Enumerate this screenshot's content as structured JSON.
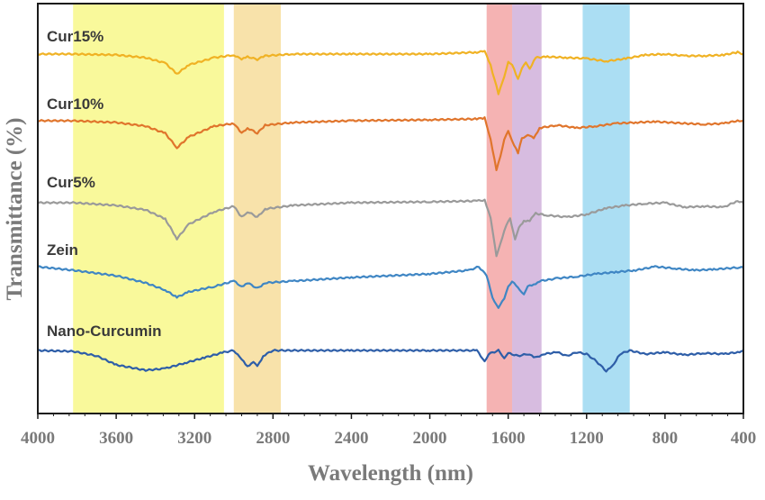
{
  "chart_data": {
    "type": "line",
    "xlabel": "Wavelength (nm)",
    "ylabel": "Transmittance (%)",
    "xlim": [
      4000,
      400
    ],
    "x_reversed": true,
    "xticks": [
      "4000",
      "3600",
      "3200",
      "2800",
      "2400",
      "2000",
      "1600",
      "1200",
      "800",
      "400"
    ],
    "grid": false,
    "legend": "inline labels above each curve",
    "bands": [
      {
        "from": 3820,
        "to": 3050,
        "color": "#f7f77a"
      },
      {
        "from": 3000,
        "to": 2760,
        "color": "#f6d88e"
      },
      {
        "from": 1710,
        "to": 1580,
        "color": "#f19a9a"
      },
      {
        "from": 1580,
        "to": 1430,
        "color": "#c9a6d6"
      },
      {
        "from": 1220,
        "to": 980,
        "color": "#8fd3ef"
      }
    ],
    "series": [
      {
        "name": "Cur15%",
        "color": "#f0b224",
        "points": [
          [
            4000,
            0.0
          ],
          [
            3820,
            0.0
          ],
          [
            3600,
            -1
          ],
          [
            3450,
            -4
          ],
          [
            3350,
            -10
          ],
          [
            3290,
            -22
          ],
          [
            3230,
            -12
          ],
          [
            3100,
            -4
          ],
          [
            3000,
            -1
          ],
          [
            2960,
            -6
          ],
          [
            2930,
            -3
          ],
          [
            2880,
            -6
          ],
          [
            2840,
            -2
          ],
          [
            2700,
            0
          ],
          [
            2400,
            0
          ],
          [
            2000,
            0
          ],
          [
            1760,
            2
          ],
          [
            1720,
            3
          ],
          [
            1690,
            -12
          ],
          [
            1650,
            -44
          ],
          [
            1620,
            -26
          ],
          [
            1600,
            -8
          ],
          [
            1580,
            -12
          ],
          [
            1550,
            -28
          ],
          [
            1530,
            -15
          ],
          [
            1510,
            -10
          ],
          [
            1490,
            -16
          ],
          [
            1460,
            -4
          ],
          [
            1400,
            -3
          ],
          [
            1300,
            -4
          ],
          [
            1200,
            -5
          ],
          [
            1100,
            -8
          ],
          [
            1000,
            -5
          ],
          [
            900,
            -1
          ],
          [
            800,
            0
          ],
          [
            700,
            -2
          ],
          [
            600,
            -2
          ],
          [
            500,
            -1
          ],
          [
            430,
            2
          ],
          [
            400,
            0
          ]
        ]
      },
      {
        "name": "Cur10%",
        "color": "#e0752c",
        "points": [
          [
            4000,
            0.0
          ],
          [
            3820,
            0.0
          ],
          [
            3600,
            -2
          ],
          [
            3450,
            -6
          ],
          [
            3350,
            -14
          ],
          [
            3290,
            -30
          ],
          [
            3230,
            -18
          ],
          [
            3100,
            -6
          ],
          [
            3000,
            -3
          ],
          [
            2960,
            -14
          ],
          [
            2930,
            -8
          ],
          [
            2880,
            -14
          ],
          [
            2840,
            -5
          ],
          [
            2700,
            -2
          ],
          [
            2400,
            0
          ],
          [
            2000,
            1
          ],
          [
            1760,
            2
          ],
          [
            1720,
            3
          ],
          [
            1690,
            -20
          ],
          [
            1660,
            -55
          ],
          [
            1640,
            -40
          ],
          [
            1620,
            -20
          ],
          [
            1600,
            -12
          ],
          [
            1580,
            -22
          ],
          [
            1550,
            -36
          ],
          [
            1530,
            -20
          ],
          [
            1500,
            -15
          ],
          [
            1470,
            -20
          ],
          [
            1440,
            -8
          ],
          [
            1350,
            -5
          ],
          [
            1250,
            -8
          ],
          [
            1150,
            -6
          ],
          [
            1050,
            -3
          ],
          [
            950,
            -2
          ],
          [
            850,
            -1
          ],
          [
            700,
            -3
          ],
          [
            600,
            -4
          ],
          [
            500,
            -3
          ],
          [
            430,
            0
          ],
          [
            400,
            0
          ]
        ]
      },
      {
        "name": "Cur5%",
        "color": "#9a9a9a",
        "points": [
          [
            4000,
            0.0
          ],
          [
            3820,
            0.0
          ],
          [
            3600,
            -3
          ],
          [
            3450,
            -8
          ],
          [
            3350,
            -18
          ],
          [
            3290,
            -40
          ],
          [
            3230,
            -24
          ],
          [
            3100,
            -10
          ],
          [
            3000,
            -4
          ],
          [
            2960,
            -16
          ],
          [
            2930,
            -10
          ],
          [
            2880,
            -16
          ],
          [
            2840,
            -7
          ],
          [
            2700,
            -3
          ],
          [
            2400,
            0
          ],
          [
            2000,
            1
          ],
          [
            1760,
            2
          ],
          [
            1720,
            3
          ],
          [
            1690,
            -16
          ],
          [
            1660,
            -60
          ],
          [
            1640,
            -45
          ],
          [
            1610,
            -25
          ],
          [
            1590,
            -18
          ],
          [
            1565,
            -40
          ],
          [
            1545,
            -28
          ],
          [
            1520,
            -20
          ],
          [
            1490,
            -20
          ],
          [
            1460,
            -12
          ],
          [
            1400,
            -14
          ],
          [
            1300,
            -16
          ],
          [
            1200,
            -13
          ],
          [
            1100,
            -6
          ],
          [
            1000,
            -3
          ],
          [
            900,
            -1
          ],
          [
            800,
            0
          ],
          [
            700,
            -5
          ],
          [
            600,
            -4
          ],
          [
            500,
            -5
          ],
          [
            430,
            2
          ],
          [
            400,
            0
          ]
        ]
      },
      {
        "name": "Zein",
        "color": "#3f86c4",
        "points": [
          [
            4000,
            0.0
          ],
          [
            3820,
            -4
          ],
          [
            3600,
            -10
          ],
          [
            3450,
            -18
          ],
          [
            3350,
            -26
          ],
          [
            3290,
            -34
          ],
          [
            3230,
            -28
          ],
          [
            3100,
            -22
          ],
          [
            3000,
            -16
          ],
          [
            2960,
            -22
          ],
          [
            2930,
            -18
          ],
          [
            2880,
            -24
          ],
          [
            2840,
            -18
          ],
          [
            2700,
            -16
          ],
          [
            2400,
            -12
          ],
          [
            2000,
            -8
          ],
          [
            1800,
            -4
          ],
          [
            1750,
            0
          ],
          [
            1710,
            -10
          ],
          [
            1680,
            -35
          ],
          [
            1650,
            -45
          ],
          [
            1620,
            -36
          ],
          [
            1600,
            -22
          ],
          [
            1580,
            -16
          ],
          [
            1550,
            -24
          ],
          [
            1520,
            -30
          ],
          [
            1500,
            -22
          ],
          [
            1470,
            -20
          ],
          [
            1440,
            -16
          ],
          [
            1350,
            -13
          ],
          [
            1250,
            -11
          ],
          [
            1150,
            -8
          ],
          [
            1050,
            -6
          ],
          [
            950,
            -4
          ],
          [
            850,
            0
          ],
          [
            750,
            -2
          ],
          [
            650,
            -4
          ],
          [
            550,
            -3
          ],
          [
            430,
            -1
          ],
          [
            400,
            -1
          ]
        ]
      },
      {
        "name": "Nano-Curcumin",
        "color": "#2e5ea8",
        "points": [
          [
            4000,
            0.0
          ],
          [
            3820,
            -1
          ],
          [
            3700,
            -6
          ],
          [
            3600,
            -16
          ],
          [
            3450,
            -22
          ],
          [
            3350,
            -20
          ],
          [
            3250,
            -14
          ],
          [
            3150,
            -8
          ],
          [
            3050,
            -2
          ],
          [
            3000,
            0
          ],
          [
            2960,
            -10
          ],
          [
            2930,
            -18
          ],
          [
            2900,
            -12
          ],
          [
            2880,
            -18
          ],
          [
            2850,
            -6
          ],
          [
            2800,
            0
          ],
          [
            2400,
            0
          ],
          [
            2000,
            0
          ],
          [
            1760,
            0
          ],
          [
            1720,
            -12
          ],
          [
            1700,
            -4
          ],
          [
            1650,
            0
          ],
          [
            1620,
            -8
          ],
          [
            1600,
            -3
          ],
          [
            1550,
            -6
          ],
          [
            1500,
            -4
          ],
          [
            1460,
            -8
          ],
          [
            1420,
            -4
          ],
          [
            1350,
            -2
          ],
          [
            1300,
            -6
          ],
          [
            1250,
            -2
          ],
          [
            1200,
            -4
          ],
          [
            1150,
            -12
          ],
          [
            1100,
            -23
          ],
          [
            1070,
            -18
          ],
          [
            1030,
            -4
          ],
          [
            980,
            0
          ],
          [
            900,
            -4
          ],
          [
            800,
            -2
          ],
          [
            700,
            -5
          ],
          [
            600,
            -3
          ],
          [
            500,
            -4
          ],
          [
            430,
            -2
          ],
          [
            400,
            0
          ]
        ]
      }
    ]
  }
}
